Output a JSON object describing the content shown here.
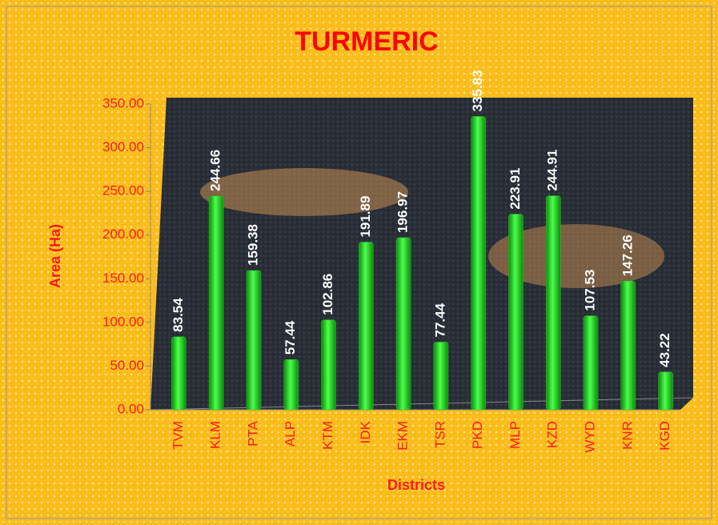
{
  "chart_data": {
    "type": "bar",
    "title": "TURMERIC",
    "x_label": "Districts",
    "y_label": "Area (Ha)",
    "categories": [
      "TVM",
      "KLM",
      "PTA",
      "ALP",
      "KTM",
      "IDK",
      "EKM",
      "TSR",
      "PKD",
      "MLP",
      "KZD",
      "WYD",
      "KNR",
      "KGD"
    ],
    "values": [
      83.54,
      244.66,
      159.38,
      57.44,
      102.86,
      191.89,
      196.97,
      77.44,
      335.83,
      223.91,
      244.91,
      107.53,
      147.26,
      43.22
    ],
    "color": "#22d422",
    "ylim": [
      0,
      350
    ],
    "yticks": [
      {
        "value": 0,
        "label": "0.00"
      },
      {
        "value": 50,
        "label": "50.00"
      },
      {
        "value": 100,
        "label": "100.00"
      },
      {
        "value": 150,
        "label": "150.00"
      },
      {
        "value": 200,
        "label": "200.00"
      },
      {
        "value": 250,
        "label": "250.00"
      },
      {
        "value": 300,
        "label": "300.00"
      },
      {
        "value": 350,
        "label": "350.00"
      }
    ]
  }
}
